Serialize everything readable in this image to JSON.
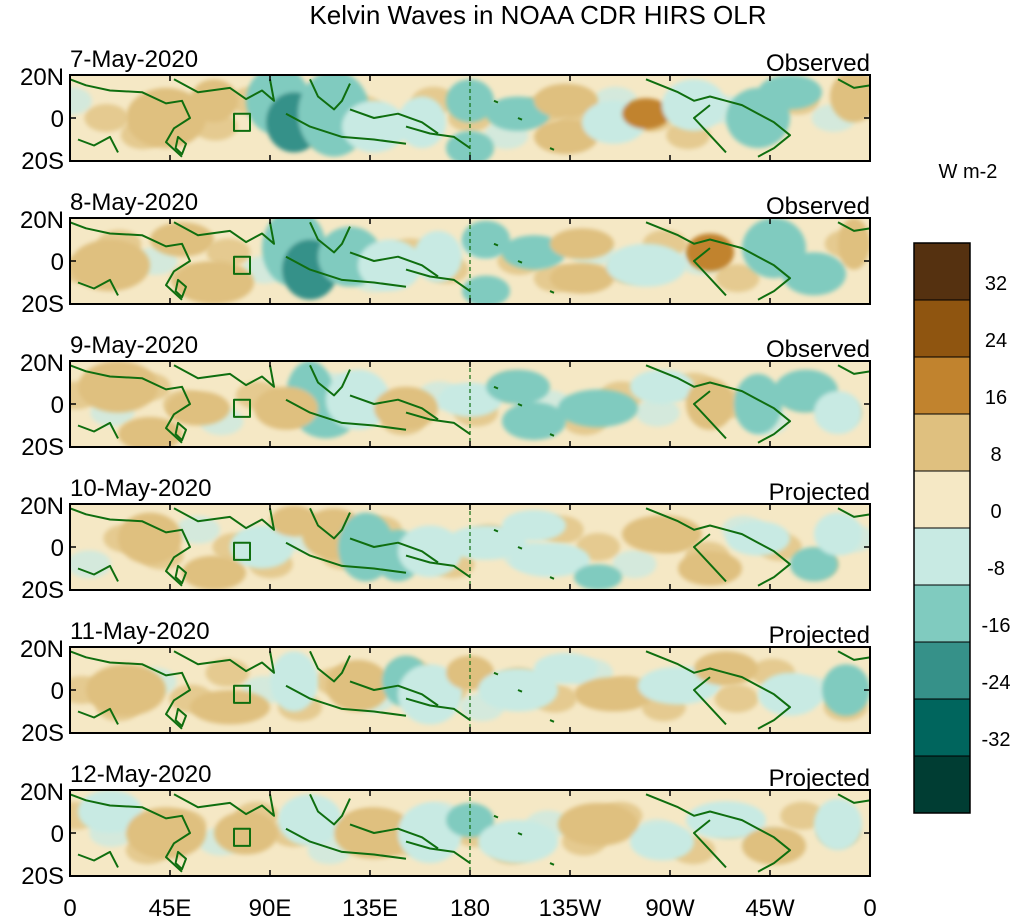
{
  "title": "Kelvin Waves in NOAA CDR HIRS OLR",
  "units_label": "W m-2",
  "panels": [
    {
      "date": "7-May-2020",
      "status": "Observed"
    },
    {
      "date": "8-May-2020",
      "status": "Observed"
    },
    {
      "date": "9-May-2020",
      "status": "Observed"
    },
    {
      "date": "10-May-2020",
      "status": "Projected"
    },
    {
      "date": "11-May-2020",
      "status": "Projected"
    },
    {
      "date": "12-May-2020",
      "status": "Projected"
    }
  ],
  "lat_labels": [
    "20N",
    "0",
    "20S"
  ],
  "lon_labels": [
    "0",
    "45E",
    "90E",
    "135E",
    "180",
    "135W",
    "90W",
    "45W",
    "0"
  ],
  "colorbar": {
    "tick_labels": [
      "32",
      "24",
      "16",
      "8",
      "0",
      "-8",
      "-16",
      "-24",
      "-32"
    ],
    "colors": [
      "#553110",
      "#8f5510",
      "#c1832e",
      "#dfc07f",
      "#f5e8c5",
      "#c8eae3",
      "#80cbbf",
      "#369189",
      "#00655d",
      "#003d33"
    ]
  },
  "colors": {
    "coast": "#0f6e0f",
    "frame": "#000000"
  }
}
